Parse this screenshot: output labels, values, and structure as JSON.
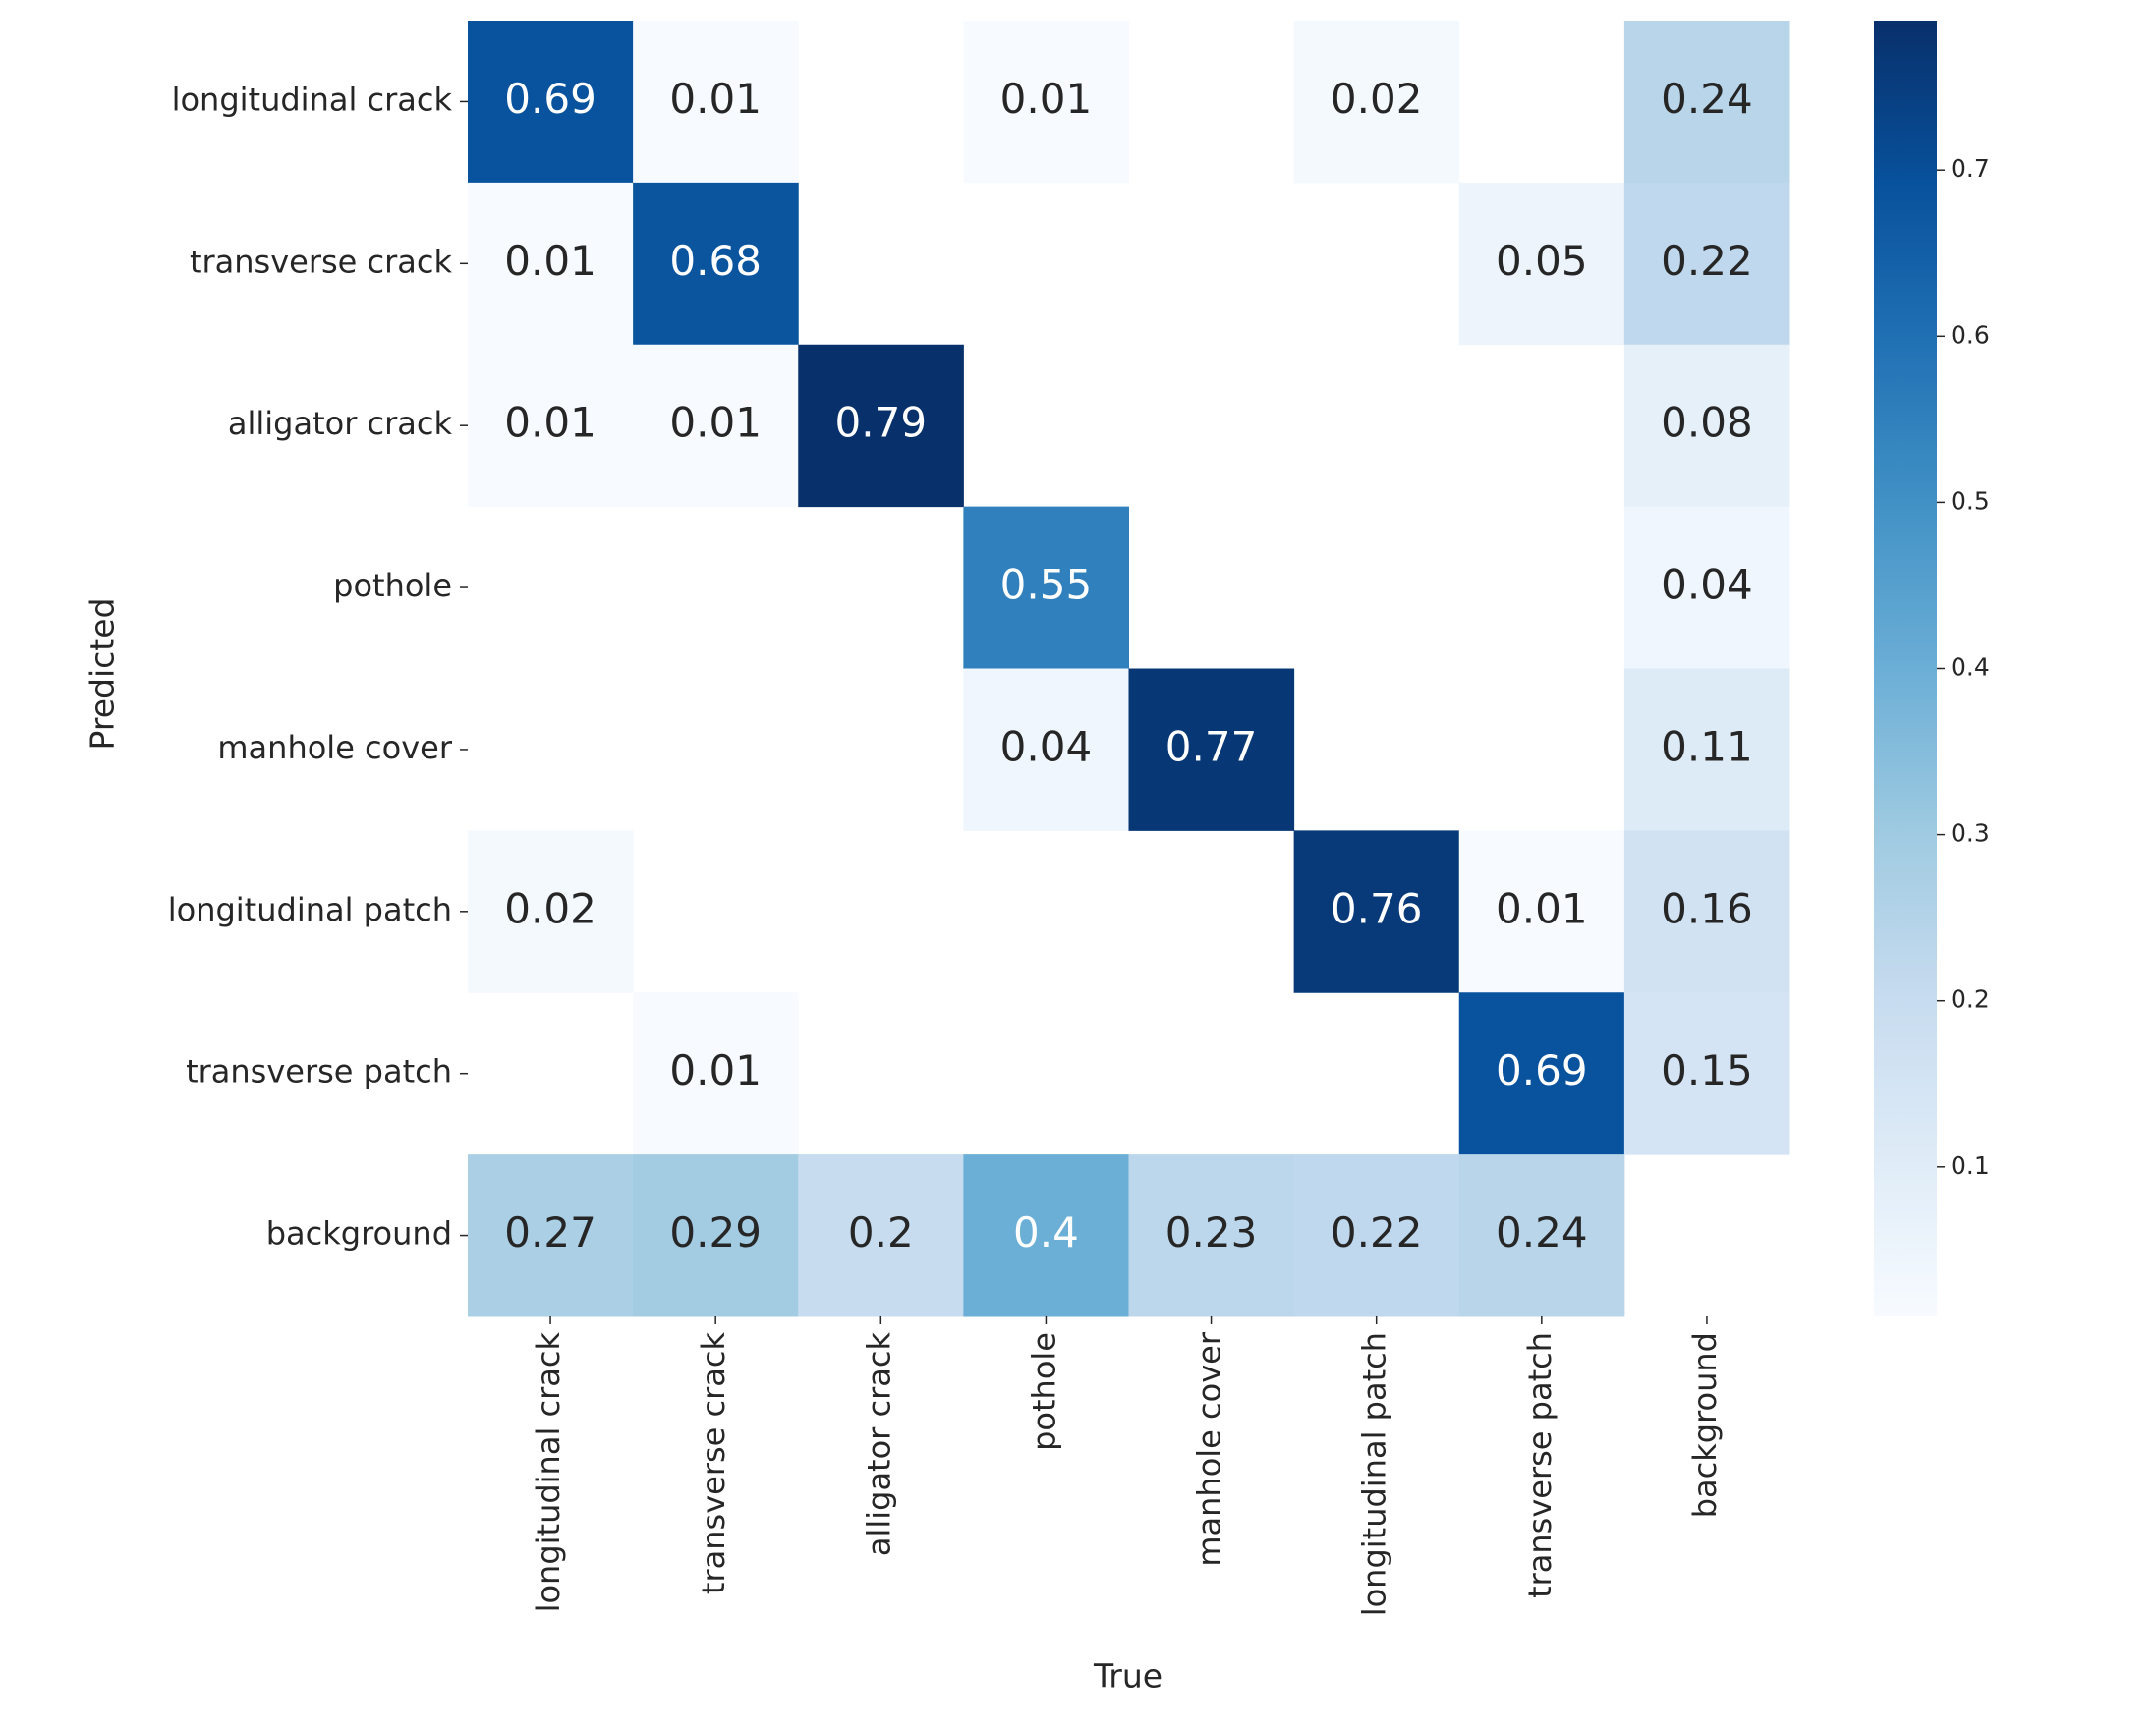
{
  "chart_data": {
    "type": "heatmap",
    "x_label": "True",
    "y_label": "Predicted",
    "x_categories": [
      "longitudinal crack",
      "transverse crack",
      "alligator crack",
      "pothole",
      "manhole cover",
      "longitudinal patch",
      "transverse patch",
      "background"
    ],
    "y_categories": [
      "longitudinal crack",
      "transverse crack",
      "alligator crack",
      "pothole",
      "manhole cover",
      "longitudinal patch",
      "transverse patch",
      "background"
    ],
    "values": [
      [
        0.69,
        0.01,
        null,
        0.01,
        null,
        0.02,
        null,
        0.24
      ],
      [
        0.01,
        0.68,
        null,
        null,
        null,
        null,
        0.05,
        0.22
      ],
      [
        0.01,
        0.01,
        0.79,
        null,
        null,
        null,
        null,
        0.08
      ],
      [
        null,
        null,
        null,
        0.55,
        null,
        null,
        null,
        0.04
      ],
      [
        null,
        null,
        null,
        0.04,
        0.77,
        null,
        null,
        0.11
      ],
      [
        0.02,
        null,
        null,
        null,
        null,
        0.76,
        0.01,
        0.16
      ],
      [
        null,
        0.01,
        null,
        null,
        null,
        null,
        0.69,
        0.15
      ],
      [
        0.27,
        0.29,
        0.2,
        0.4,
        0.23,
        0.22,
        0.24,
        null
      ]
    ],
    "colormap": "Blues",
    "zlim": [
      0.01,
      0.79
    ],
    "zticks": [
      0.1,
      0.2,
      0.3,
      0.4,
      0.5,
      0.6,
      0.7
    ]
  }
}
